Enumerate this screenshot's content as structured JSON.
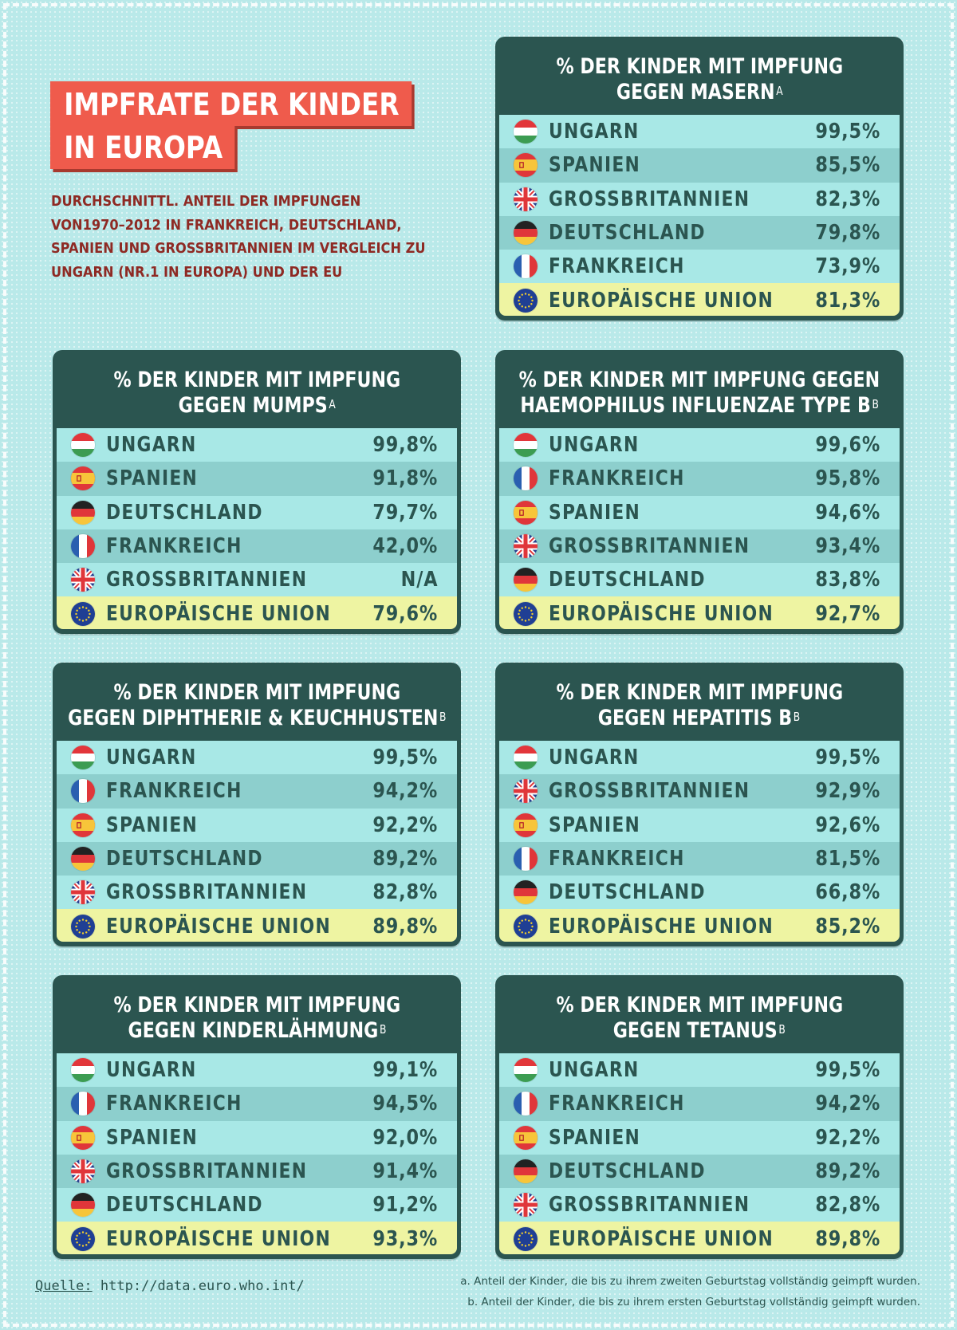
{
  "title": {
    "line1": "IMPFRATE DER KINDER",
    "line2": "IN EUROPA"
  },
  "subtitle": "DURCHSCHNITTL. ANTEIL DER IMPFUNGEN VON1970–2012 IN FRANKREICH, DEUTSCHLAND, SPANIEN UND GROSSBRITANNIEN IM VERGLEICH ZU UNGARN (NR.1 IN EUROPA) UND DER EU",
  "colors": {
    "background": "#b9e9e9",
    "panel": "#2b5550",
    "row": "#a8e8e6",
    "row_alt": "#8dcfcd",
    "eu_row": "#eef4a2",
    "title_box": "#ef5b4c",
    "subtitle_text": "#8e2a24"
  },
  "chart_data": [
    {
      "type": "table",
      "title_line1": "% DER KINDER MIT IMPFUNG",
      "title_line2": "GEGEN MASERN",
      "note": "a",
      "rows": [
        {
          "flag": "hungary-flag-icon",
          "country": "UNGARN",
          "value": "99,5%"
        },
        {
          "flag": "spain-flag-icon",
          "country": "SPANIEN",
          "value": "85,5%"
        },
        {
          "flag": "uk-flag-icon",
          "country": "GROSSBRITANNIEN",
          "value": "82,3%"
        },
        {
          "flag": "germany-flag-icon",
          "country": "DEUTSCHLAND",
          "value": "79,8%"
        },
        {
          "flag": "france-flag-icon",
          "country": "FRANKREICH",
          "value": "73,9%"
        },
        {
          "flag": "eu-flag-icon",
          "country": "EUROPÄISCHE UNION",
          "value": "81,3%"
        }
      ]
    },
    {
      "type": "table",
      "title_line1": "% DER KINDER MIT IMPFUNG",
      "title_line2": "GEGEN MUMPS",
      "note": "a",
      "rows": [
        {
          "flag": "hungary-flag-icon",
          "country": "UNGARN",
          "value": "99,8%"
        },
        {
          "flag": "spain-flag-icon",
          "country": "SPANIEN",
          "value": "91,8%"
        },
        {
          "flag": "germany-flag-icon",
          "country": "DEUTSCHLAND",
          "value": "79,7%"
        },
        {
          "flag": "france-flag-icon",
          "country": "FRANKREICH",
          "value": "42,0%"
        },
        {
          "flag": "uk-flag-icon",
          "country": "GROSSBRITANNIEN",
          "value": "N/A"
        },
        {
          "flag": "eu-flag-icon",
          "country": "EUROPÄISCHE UNION",
          "value": "79,6%"
        }
      ]
    },
    {
      "type": "table",
      "title_line1": "% DER KINDER MIT IMPFUNG GEGEN",
      "title_line2": "HAEMOPHILUS INFLUENZAE TYPE B",
      "note": "b",
      "rows": [
        {
          "flag": "hungary-flag-icon",
          "country": "UNGARN",
          "value": "99,6%"
        },
        {
          "flag": "france-flag-icon",
          "country": "FRANKREICH",
          "value": "95,8%"
        },
        {
          "flag": "spain-flag-icon",
          "country": "SPANIEN",
          "value": "94,6%"
        },
        {
          "flag": "uk-flag-icon",
          "country": "GROSSBRITANNIEN",
          "value": "93,4%"
        },
        {
          "flag": "germany-flag-icon",
          "country": "DEUTSCHLAND",
          "value": "83,8%"
        },
        {
          "flag": "eu-flag-icon",
          "country": "EUROPÄISCHE UNION",
          "value": "92,7%"
        }
      ]
    },
    {
      "type": "table",
      "title_line1": "% DER KINDER MIT IMPFUNG",
      "title_line2": "GEGEN DIPHTHERIE & KEUCHHUSTEN",
      "note": "b",
      "rows": [
        {
          "flag": "hungary-flag-icon",
          "country": "UNGARN",
          "value": "99,5%"
        },
        {
          "flag": "france-flag-icon",
          "country": "FRANKREICH",
          "value": "94,2%"
        },
        {
          "flag": "spain-flag-icon",
          "country": "SPANIEN",
          "value": "92,2%"
        },
        {
          "flag": "germany-flag-icon",
          "country": "DEUTSCHLAND",
          "value": "89,2%"
        },
        {
          "flag": "uk-flag-icon",
          "country": "GROSSBRITANNIEN",
          "value": "82,8%"
        },
        {
          "flag": "eu-flag-icon",
          "country": "EUROPÄISCHE UNION",
          "value": "89,8%"
        }
      ]
    },
    {
      "type": "table",
      "title_line1": "% DER KINDER MIT IMPFUNG",
      "title_line2": "GEGEN HEPATITIS B",
      "note": "b",
      "rows": [
        {
          "flag": "hungary-flag-icon",
          "country": "UNGARN",
          "value": "99,5%"
        },
        {
          "flag": "uk-flag-icon",
          "country": "GROSSBRITANNIEN",
          "value": "92,9%"
        },
        {
          "flag": "spain-flag-icon",
          "country": "SPANIEN",
          "value": "92,6%"
        },
        {
          "flag": "france-flag-icon",
          "country": "FRANKREICH",
          "value": "81,5%"
        },
        {
          "flag": "germany-flag-icon",
          "country": "DEUTSCHLAND",
          "value": "66,8%"
        },
        {
          "flag": "eu-flag-icon",
          "country": "EUROPÄISCHE UNION",
          "value": "85,2%"
        }
      ]
    },
    {
      "type": "table",
      "title_line1": "% DER KINDER MIT IMPFUNG",
      "title_line2": "GEGEN KINDERLÄHMUNG",
      "note": "b",
      "rows": [
        {
          "flag": "hungary-flag-icon",
          "country": "UNGARN",
          "value": "99,1%"
        },
        {
          "flag": "france-flag-icon",
          "country": "FRANKREICH",
          "value": "94,5%"
        },
        {
          "flag": "spain-flag-icon",
          "country": "SPANIEN",
          "value": "92,0%"
        },
        {
          "flag": "uk-flag-icon",
          "country": "GROSSBRITANNIEN",
          "value": "91,4%"
        },
        {
          "flag": "germany-flag-icon",
          "country": "DEUTSCHLAND",
          "value": "91,2%"
        },
        {
          "flag": "eu-flag-icon",
          "country": "EUROPÄISCHE UNION",
          "value": "93,3%"
        }
      ]
    },
    {
      "type": "table",
      "title_line1": "% DER KINDER MIT IMPFUNG",
      "title_line2": "GEGEN TETANUS",
      "note": "b",
      "rows": [
        {
          "flag": "hungary-flag-icon",
          "country": "UNGARN",
          "value": "99,5%"
        },
        {
          "flag": "france-flag-icon",
          "country": "FRANKREICH",
          "value": "94,2%"
        },
        {
          "flag": "spain-flag-icon",
          "country": "SPANIEN",
          "value": "92,2%"
        },
        {
          "flag": "germany-flag-icon",
          "country": "DEUTSCHLAND",
          "value": "89,2%"
        },
        {
          "flag": "uk-flag-icon",
          "country": "GROSSBRITANNIEN",
          "value": "82,8%"
        },
        {
          "flag": "eu-flag-icon",
          "country": "EUROPÄISCHE UNION",
          "value": "89,8%"
        }
      ]
    }
  ],
  "source": {
    "label": "Quelle:",
    "url": "http://data.euro.who.int/"
  },
  "footnotes": [
    "a. Anteil der Kinder, die bis zu ihrem zweiten Geburtstag vollständig geimpft wurden.",
    "b. Anteil der Kinder, die bis zu ihrem ersten Geburtstag vollständig geimpft wurden."
  ]
}
